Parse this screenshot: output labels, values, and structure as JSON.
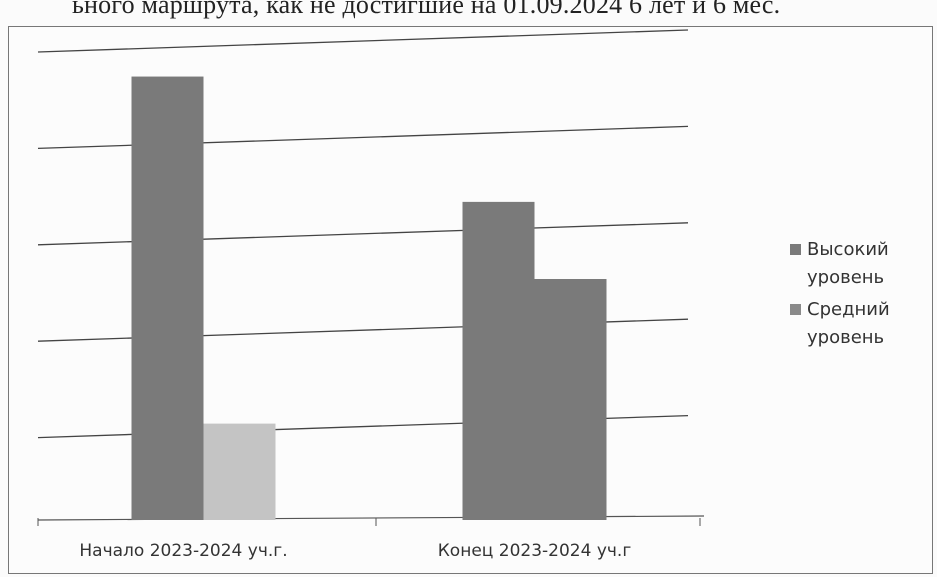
{
  "caption": "ьного маршрута, как не достигшие на 01.09.2024 6 лет и 6 мес.",
  "chart_data": {
    "type": "bar",
    "categories": [
      "Начало 2023-2024 уч.г.",
      "Конец 2023-2024 уч.г"
    ],
    "series": [
      {
        "name": "Высокий уровень",
        "values": [
          46,
          33
        ],
        "color": "#7a7a7a"
      },
      {
        "name": "Средний уровень",
        "values": [
          10,
          25
        ],
        "color": "#8a8a8a"
      }
    ],
    "start_fill_override": {
      "Средний уровень": [
        "#c4c4c4",
        "#7a7a7a"
      ]
    },
    "ylim": [
      0,
      50
    ],
    "grid": true,
    "legend_position": "right"
  }
}
